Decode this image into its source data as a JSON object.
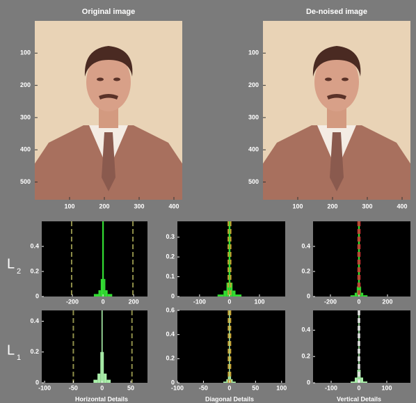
{
  "images": [
    {
      "title": "Original image",
      "xlim": [
        0,
        424
      ],
      "ylim": [
        0,
        555
      ],
      "xticks": [
        100,
        200,
        300,
        400
      ],
      "yticks": [
        100,
        200,
        300,
        400,
        500
      ]
    },
    {
      "title": "De-noised image",
      "xlim": [
        0,
        424
      ],
      "ylim": [
        0,
        555
      ],
      "xticks": [
        100,
        200,
        300,
        400
      ],
      "yticks": [
        100,
        200,
        300,
        400,
        500
      ]
    }
  ],
  "levels": [
    {
      "letter": "L",
      "index": "2"
    },
    {
      "letter": "L",
      "index": "1"
    }
  ],
  "detail_labels": [
    "Horizontal Details",
    "Diagonal Details",
    "Vertical Details"
  ],
  "histograms": [
    {
      "xlim": [
        -400,
        290
      ],
      "ylim": [
        0,
        0.6
      ],
      "xticks": [
        -200,
        0,
        200
      ],
      "yticks": [
        0,
        0.2,
        0.4
      ],
      "thresholds": [
        -205,
        195
      ],
      "threshold_color": "#8f8f4a",
      "color": "#33dd33",
      "bins": [
        -60,
        -30,
        -15,
        -5,
        5,
        15,
        30,
        60
      ],
      "counts": [
        0.02,
        0.05,
        0.14,
        0.6,
        0.14,
        0.05,
        0.02
      ]
    },
    {
      "xlim": [
        -174,
        186
      ],
      "ylim": [
        0,
        0.38
      ],
      "xticks": [
        -100,
        0,
        100
      ],
      "yticks": [
        0,
        0.1,
        0.2,
        0.3
      ],
      "thresholds": [
        -4,
        4
      ],
      "threshold_color": "#c8a030",
      "color": "#33dd33",
      "bins": [
        -40,
        -20,
        -10,
        -3,
        3,
        10,
        20,
        40
      ],
      "counts": [
        0.01,
        0.03,
        0.07,
        0.38,
        0.07,
        0.03,
        0.01
      ]
    },
    {
      "xlim": [
        -322,
        361
      ],
      "ylim": [
        0,
        0.6
      ],
      "xticks": [
        -200,
        0,
        200
      ],
      "yticks": [
        0,
        0.2,
        0.4
      ],
      "thresholds": [
        -6,
        6
      ],
      "threshold_color": "#cc3333",
      "color": "#33dd33",
      "bins": [
        -60,
        -30,
        -15,
        -6,
        6,
        15,
        30,
        60
      ],
      "counts": [
        0.01,
        0.03,
        0.08,
        0.6,
        0.08,
        0.03,
        0.01
      ]
    },
    {
      "xlim": [
        -105,
        79
      ],
      "ylim": [
        0,
        0.47
      ],
      "xticks": [
        -100,
        -50,
        0,
        50
      ],
      "yticks": [
        0,
        0.2,
        0.4
      ],
      "thresholds": [
        -50,
        52
      ],
      "threshold_color": "#8f8f4a",
      "color": "#aaf0aa",
      "bins": [
        -15,
        -8,
        -3,
        -1,
        1,
        3,
        8,
        15
      ],
      "counts": [
        0.02,
        0.06,
        0.2,
        0.47,
        0.2,
        0.06,
        0.02
      ]
    },
    {
      "xlim": [
        -100,
        107
      ],
      "ylim": [
        0,
        0.6
      ],
      "xticks": [
        -100,
        -50,
        0,
        50,
        100
      ],
      "yticks": [
        0,
        0.2,
        0.4,
        0.6
      ],
      "thresholds": [
        -2,
        2
      ],
      "threshold_color": "#c8a030",
      "color": "#aaf0aa",
      "bins": [
        -12,
        -6,
        -3,
        -1,
        1,
        3,
        6,
        12
      ],
      "counts": [
        0.01,
        0.03,
        0.08,
        0.6,
        0.08,
        0.03,
        0.01
      ]
    },
    {
      "xlim": [
        -165,
        185
      ],
      "ylim": [
        0,
        0.55
      ],
      "xticks": [
        -100,
        0,
        100
      ],
      "yticks": [
        0,
        0.2,
        0.4
      ],
      "thresholds": [
        -2,
        2
      ],
      "threshold_color": "#e0e0e0",
      "color": "#aaf0aa",
      "bins": [
        -30,
        -15,
        -6,
        -2,
        2,
        6,
        15,
        30
      ],
      "counts": [
        0.01,
        0.04,
        0.1,
        0.55,
        0.1,
        0.04,
        0.01
      ]
    }
  ]
}
